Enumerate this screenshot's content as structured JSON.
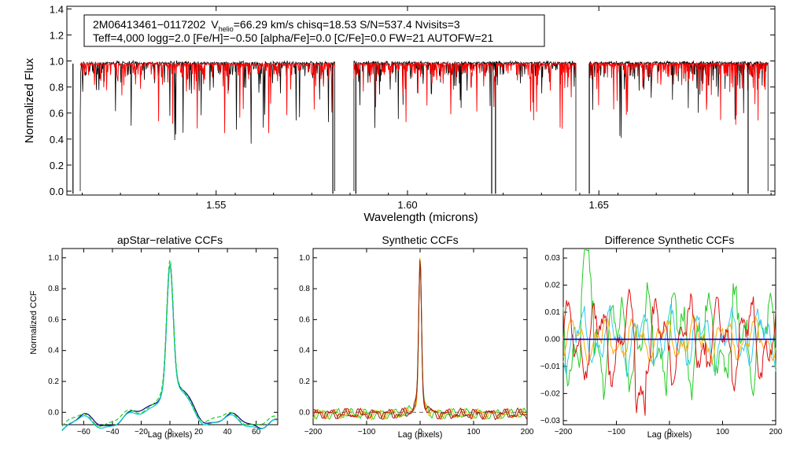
{
  "chart_data": [
    {
      "id": "spectrum",
      "type": "line",
      "xlabel": "Wavelength (microns)",
      "ylabel": "Normalized Flux",
      "xlim": [
        1.511,
        1.696
      ],
      "ylim": [
        -0.03,
        1.42
      ],
      "xticks": [
        1.55,
        1.6,
        1.65
      ],
      "xtick_labels": [
        "1.55",
        "1.60",
        "1.65"
      ],
      "yticks": [
        0.0,
        0.2,
        0.4,
        0.6,
        0.8,
        1.0,
        1.2,
        1.4
      ],
      "ytick_labels": [
        "0.0",
        "0.2",
        "0.4",
        "0.6",
        "0.8",
        "1.0",
        "1.2",
        "1.4"
      ],
      "chips": [
        [
          1.5145,
          1.581
        ],
        [
          1.586,
          1.644
        ],
        [
          1.6475,
          1.6942
        ]
      ],
      "deep_lines": [
        1.5126,
        1.5805,
        1.5865,
        1.622,
        1.623,
        1.6475,
        1.689
      ],
      "legend": {
        "line1_name": "2M06413461−0117202",
        "line1_vlabel": "V",
        "line1_vsub": "helio",
        "line1_rest": "=66.29 km/s  chisq=18.53  S/N=537.4  Nvisits=3",
        "line2": "Teff=4,000 logg=2.0 [Fe/H]=−0.50 [alpha/Fe]=0.0 [C/Fe]=0.0 FW=21 AUTOFW=21"
      },
      "series": [
        {
          "name": "observed",
          "color": "#000000"
        },
        {
          "name": "model",
          "color": "#ff0000"
        }
      ]
    },
    {
      "id": "apstar-ccf",
      "type": "line",
      "title": "apStar−relative CCFs",
      "xlabel": "Lag (pixels)",
      "ylabel": "Normalized CCF",
      "xlim": [
        -75,
        75
      ],
      "ylim": [
        -0.08,
        1.06
      ],
      "xticks": [
        -60,
        -40,
        -20,
        0,
        20,
        40,
        60
      ],
      "xtick_labels": [
        "−60",
        "−40",
        "−20",
        "0",
        "20",
        "40",
        "60"
      ],
      "yticks": [
        0.0,
        0.2,
        0.4,
        0.6,
        0.8,
        1.0
      ],
      "ytick_labels": [
        "0.0",
        "0.2",
        "0.4",
        "0.6",
        "0.8",
        "1.0"
      ],
      "series": [
        {
          "name": "combined",
          "color": "#000080"
        },
        {
          "name": "visit1",
          "color": "#00c8c8"
        },
        {
          "name": "visit2",
          "color": "#22cc22"
        }
      ]
    },
    {
      "id": "synthetic-ccf",
      "type": "line",
      "title": "Synthetic CCFs",
      "xlabel": "Lag (pixels)",
      "xlim": [
        -200,
        200
      ],
      "ylim": [
        -0.08,
        1.06
      ],
      "xticks": [
        -200,
        -100,
        0,
        100,
        200
      ],
      "xtick_labels": [
        "−200",
        "−100",
        "0",
        "100",
        "200"
      ],
      "yticks": [
        0.0,
        0.2,
        0.4,
        0.6,
        0.8,
        1.0
      ],
      "ytick_labels": [
        "0.0",
        "0.2",
        "0.4",
        "0.6",
        "0.8",
        "1.0"
      ],
      "series": [
        {
          "name": "green",
          "color": "#22cc22"
        },
        {
          "name": "yellow",
          "color": "#e6c200"
        },
        {
          "name": "red",
          "color": "#dd1111"
        },
        {
          "name": "combined",
          "color": "#8b2a0a"
        }
      ]
    },
    {
      "id": "diff-ccf",
      "type": "line",
      "title": "Difference Synthetic CCFs",
      "xlabel": "Lag (pixels)",
      "xlim": [
        -200,
        200
      ],
      "ylim": [
        -0.0315,
        0.0335
      ],
      "xticks": [
        -200,
        -100,
        0,
        100,
        200
      ],
      "xtick_labels": [
        "−200",
        "−100",
        "0",
        "100",
        "200"
      ],
      "yticks": [
        0.03,
        0.02,
        0.01,
        0.0,
        -0.01,
        -0.02,
        -0.03
      ],
      "ytick_labels": [
        "0.03",
        "0.02",
        "0.01",
        "0.00",
        "−0.01",
        "−0.02",
        "−0.03"
      ],
      "series": [
        {
          "name": "green",
          "color": "#22cc22"
        },
        {
          "name": "cyan",
          "color": "#33ccee"
        },
        {
          "name": "orange",
          "color": "#ffaa00"
        },
        {
          "name": "red",
          "color": "#dd1111"
        },
        {
          "name": "blue",
          "color": "#0000cc"
        }
      ]
    }
  ]
}
